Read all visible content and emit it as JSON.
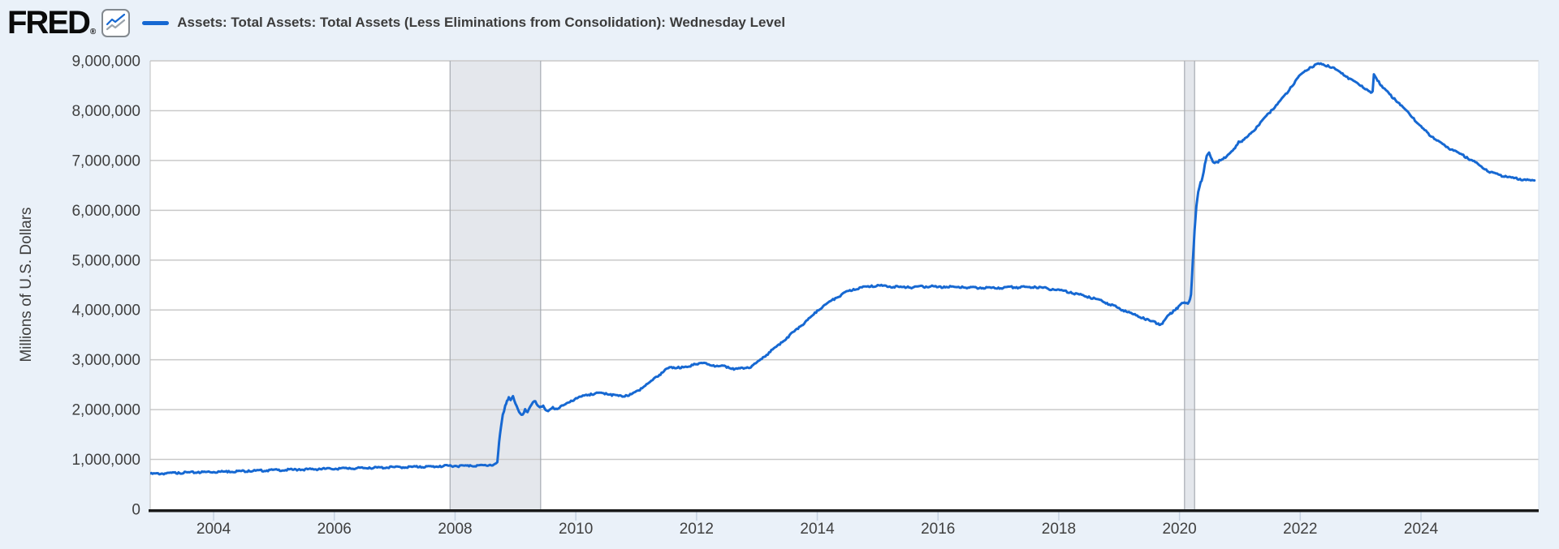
{
  "header": {
    "logo_text": "FRED",
    "logo_registered_mark": "®",
    "legend_series_label": "Assets: Total Assets: Total Assets (Less Eliminations from Consolidation): Wednesday Level"
  },
  "colors": {
    "page_background": "#eaf1f9",
    "plot_background": "#ffffff",
    "series_line": "#1668d2",
    "logo_icon_secondary_line": "#9aa3ab",
    "gridline": "#c9c9c9",
    "plot_left_border": "#bfbfbf",
    "plot_right_border": "#d7e0ec",
    "recession_band_fill": "#e4e7ec",
    "recession_band_border": "#a6abb2",
    "axis_line": "#1a1a1a",
    "tick_label": "#404040",
    "tick_mark": "#c5d2e2",
    "title_text": "#3c3c3c"
  },
  "chart_data": {
    "type": "line",
    "title": "Assets: Total Assets: Total Assets (Less Eliminations from Consolidation): Wednesday Level",
    "xlabel": "",
    "ylabel": "Millions of U.S. Dollars",
    "legend_position": "top-left",
    "grid": "horizontal",
    "xlim": [
      2002.95,
      2025.95
    ],
    "ylim": [
      0,
      9000000
    ],
    "x_tick_labels": [
      "2004",
      "2006",
      "2008",
      "2010",
      "2012",
      "2014",
      "2016",
      "2018",
      "2020",
      "2022",
      "2024"
    ],
    "y_tick_labels": [
      "0",
      "1,000,000",
      "2,000,000",
      "3,000,000",
      "4,000,000",
      "5,000,000",
      "6,000,000",
      "7,000,000",
      "8,000,000",
      "9,000,000"
    ],
    "recession_bands": [
      [
        2007.917,
        2009.417
      ],
      [
        2020.083,
        2020.25
      ]
    ],
    "series": [
      {
        "name": "Assets: Total Assets: Total Assets (Less Eliminations from Consolidation): Wednesday Level",
        "units": "Millions of U.S. Dollars",
        "points": [
          [
            2002.95,
            719000
          ],
          [
            2003.08,
            723000
          ],
          [
            2003.25,
            733000
          ],
          [
            2003.42,
            741000
          ],
          [
            2003.58,
            746000
          ],
          [
            2003.75,
            750000
          ],
          [
            2003.92,
            758000
          ],
          [
            2004.08,
            761000
          ],
          [
            2004.25,
            768000
          ],
          [
            2004.42,
            774000
          ],
          [
            2004.58,
            779000
          ],
          [
            2004.75,
            784000
          ],
          [
            2004.92,
            792000
          ],
          [
            2005.08,
            796000
          ],
          [
            2005.25,
            801000
          ],
          [
            2005.42,
            806000
          ],
          [
            2005.58,
            811000
          ],
          [
            2005.75,
            816000
          ],
          [
            2005.92,
            825000
          ],
          [
            2006.08,
            826000
          ],
          [
            2006.25,
            830000
          ],
          [
            2006.42,
            834000
          ],
          [
            2006.58,
            839000
          ],
          [
            2006.75,
            843000
          ],
          [
            2006.92,
            852000
          ],
          [
            2007.08,
            853000
          ],
          [
            2007.25,
            857000
          ],
          [
            2007.42,
            861000
          ],
          [
            2007.58,
            865000
          ],
          [
            2007.75,
            870000
          ],
          [
            2007.92,
            884000
          ],
          [
            2008.08,
            879000
          ],
          [
            2008.25,
            883000
          ],
          [
            2008.42,
            889000
          ],
          [
            2008.58,
            894000
          ],
          [
            2008.66,
            910000
          ],
          [
            2008.7,
            945000
          ],
          [
            2008.73,
            1350000
          ],
          [
            2008.76,
            1650000
          ],
          [
            2008.79,
            1900000
          ],
          [
            2008.83,
            2080000
          ],
          [
            2008.86,
            2180000
          ],
          [
            2008.89,
            2250000
          ],
          [
            2008.92,
            2190000
          ],
          [
            2008.96,
            2270000
          ],
          [
            2009.0,
            2120000
          ],
          [
            2009.04,
            2010000
          ],
          [
            2009.08,
            1920000
          ],
          [
            2009.12,
            1900000
          ],
          [
            2009.16,
            2010000
          ],
          [
            2009.2,
            1950000
          ],
          [
            2009.25,
            2070000
          ],
          [
            2009.29,
            2150000
          ],
          [
            2009.33,
            2170000
          ],
          [
            2009.37,
            2080000
          ],
          [
            2009.42,
            2060000
          ],
          [
            2009.46,
            2080000
          ],
          [
            2009.5,
            1990000
          ],
          [
            2009.54,
            1970000
          ],
          [
            2009.58,
            2010000
          ],
          [
            2009.62,
            2050000
          ],
          [
            2009.67,
            2020000
          ],
          [
            2009.75,
            2070000
          ],
          [
            2009.83,
            2110000
          ],
          [
            2009.92,
            2180000
          ],
          [
            2010.0,
            2230000
          ],
          [
            2010.08,
            2260000
          ],
          [
            2010.17,
            2300000
          ],
          [
            2010.25,
            2320000
          ],
          [
            2010.33,
            2330000
          ],
          [
            2010.42,
            2340000
          ],
          [
            2010.5,
            2330000
          ],
          [
            2010.58,
            2310000
          ],
          [
            2010.67,
            2290000
          ],
          [
            2010.75,
            2280000
          ],
          [
            2010.83,
            2290000
          ],
          [
            2010.92,
            2310000
          ],
          [
            2011.0,
            2370000
          ],
          [
            2011.08,
            2430000
          ],
          [
            2011.17,
            2510000
          ],
          [
            2011.25,
            2580000
          ],
          [
            2011.33,
            2660000
          ],
          [
            2011.42,
            2740000
          ],
          [
            2011.5,
            2820000
          ],
          [
            2011.55,
            2850000
          ],
          [
            2011.62,
            2850000
          ],
          [
            2011.7,
            2860000
          ],
          [
            2011.78,
            2850000
          ],
          [
            2011.86,
            2860000
          ],
          [
            2011.92,
            2900000
          ],
          [
            2011.96,
            2920000
          ],
          [
            2012.04,
            2930000
          ],
          [
            2012.12,
            2940000
          ],
          [
            2012.2,
            2910000
          ],
          [
            2012.28,
            2890000
          ],
          [
            2012.36,
            2870000
          ],
          [
            2012.44,
            2880000
          ],
          [
            2012.52,
            2860000
          ],
          [
            2012.6,
            2830000
          ],
          [
            2012.68,
            2820000
          ],
          [
            2012.76,
            2840000
          ],
          [
            2012.84,
            2850000
          ],
          [
            2012.92,
            2880000
          ],
          [
            2013.0,
            2950000
          ],
          [
            2013.1,
            3050000
          ],
          [
            2013.2,
            3150000
          ],
          [
            2013.3,
            3250000
          ],
          [
            2013.4,
            3350000
          ],
          [
            2013.5,
            3450000
          ],
          [
            2013.6,
            3560000
          ],
          [
            2013.7,
            3660000
          ],
          [
            2013.8,
            3760000
          ],
          [
            2013.9,
            3870000
          ],
          [
            2014.0,
            3990000
          ],
          [
            2014.1,
            4080000
          ],
          [
            2014.2,
            4170000
          ],
          [
            2014.3,
            4240000
          ],
          [
            2014.4,
            4310000
          ],
          [
            2014.5,
            4380000
          ],
          [
            2014.6,
            4420000
          ],
          [
            2014.7,
            4450000
          ],
          [
            2014.8,
            4470000
          ],
          [
            2014.9,
            4490000
          ],
          [
            2015.0,
            4500000
          ],
          [
            2015.1,
            4490000
          ],
          [
            2015.2,
            4470000
          ],
          [
            2015.3,
            4480000
          ],
          [
            2015.4,
            4460000
          ],
          [
            2015.5,
            4470000
          ],
          [
            2015.6,
            4460000
          ],
          [
            2015.7,
            4480000
          ],
          [
            2015.8,
            4470000
          ],
          [
            2015.9,
            4490000
          ],
          [
            2016.0,
            4460000
          ],
          [
            2016.1,
            4470000
          ],
          [
            2016.2,
            4480000
          ],
          [
            2016.3,
            4460000
          ],
          [
            2016.4,
            4470000
          ],
          [
            2016.5,
            4450000
          ],
          [
            2016.6,
            4460000
          ],
          [
            2016.7,
            4450000
          ],
          [
            2016.8,
            4460000
          ],
          [
            2016.9,
            4450000
          ],
          [
            2017.0,
            4450000
          ],
          [
            2017.1,
            4460000
          ],
          [
            2017.2,
            4470000
          ],
          [
            2017.3,
            4460000
          ],
          [
            2017.4,
            4470000
          ],
          [
            2017.5,
            4460000
          ],
          [
            2017.6,
            4470000
          ],
          [
            2017.7,
            4460000
          ],
          [
            2017.8,
            4440000
          ],
          [
            2017.9,
            4420000
          ],
          [
            2018.0,
            4410000
          ],
          [
            2018.1,
            4390000
          ],
          [
            2018.2,
            4360000
          ],
          [
            2018.3,
            4330000
          ],
          [
            2018.4,
            4300000
          ],
          [
            2018.5,
            4270000
          ],
          [
            2018.6,
            4230000
          ],
          [
            2018.7,
            4200000
          ],
          [
            2018.8,
            4140000
          ],
          [
            2018.9,
            4100000
          ],
          [
            2019.0,
            4040000
          ],
          [
            2019.1,
            3990000
          ],
          [
            2019.2,
            3940000
          ],
          [
            2019.3,
            3890000
          ],
          [
            2019.4,
            3850000
          ],
          [
            2019.5,
            3790000
          ],
          [
            2019.6,
            3760000
          ],
          [
            2019.65,
            3730000
          ],
          [
            2019.7,
            3720000
          ],
          [
            2019.75,
            3790000
          ],
          [
            2019.8,
            3880000
          ],
          [
            2019.85,
            3940000
          ],
          [
            2019.9,
            3990000
          ],
          [
            2019.95,
            4040000
          ],
          [
            2020.0,
            4090000
          ],
          [
            2020.04,
            4140000
          ],
          [
            2020.08,
            4150000
          ],
          [
            2020.12,
            4140000
          ],
          [
            2020.16,
            4170000
          ],
          [
            2020.19,
            4310000
          ],
          [
            2020.22,
            4980000
          ],
          [
            2020.25,
            5600000
          ],
          [
            2020.28,
            6080000
          ],
          [
            2020.31,
            6370000
          ],
          [
            2020.35,
            6570000
          ],
          [
            2020.38,
            6660000
          ],
          [
            2020.42,
            6930000
          ],
          [
            2020.45,
            7090000
          ],
          [
            2020.47,
            7130000
          ],
          [
            2020.49,
            7160000
          ],
          [
            2020.52,
            7060000
          ],
          [
            2020.55,
            6980000
          ],
          [
            2020.58,
            6950000
          ],
          [
            2020.62,
            6970000
          ],
          [
            2020.66,
            7010000
          ],
          [
            2020.7,
            7020000
          ],
          [
            2020.74,
            7060000
          ],
          [
            2020.78,
            7080000
          ],
          [
            2020.82,
            7130000
          ],
          [
            2020.86,
            7180000
          ],
          [
            2020.9,
            7230000
          ],
          [
            2020.94,
            7300000
          ],
          [
            2020.98,
            7380000
          ],
          [
            2021.05,
            7410000
          ],
          [
            2021.12,
            7470000
          ],
          [
            2021.2,
            7570000
          ],
          [
            2021.28,
            7680000
          ],
          [
            2021.36,
            7790000
          ],
          [
            2021.44,
            7900000
          ],
          [
            2021.52,
            8010000
          ],
          [
            2021.6,
            8110000
          ],
          [
            2021.68,
            8220000
          ],
          [
            2021.76,
            8340000
          ],
          [
            2021.84,
            8470000
          ],
          [
            2021.92,
            8600000
          ],
          [
            2022.0,
            8720000
          ],
          [
            2022.08,
            8800000
          ],
          [
            2022.16,
            8870000
          ],
          [
            2022.24,
            8920000
          ],
          [
            2022.3,
            8950000
          ],
          [
            2022.38,
            8930000
          ],
          [
            2022.46,
            8910000
          ],
          [
            2022.54,
            8870000
          ],
          [
            2022.62,
            8810000
          ],
          [
            2022.7,
            8750000
          ],
          [
            2022.78,
            8680000
          ],
          [
            2022.86,
            8620000
          ],
          [
            2022.94,
            8560000
          ],
          [
            2023.02,
            8500000
          ],
          [
            2023.1,
            8430000
          ],
          [
            2023.17,
            8360000
          ],
          [
            2023.2,
            8390000
          ],
          [
            2023.22,
            8730000
          ],
          [
            2023.26,
            8650000
          ],
          [
            2023.3,
            8590000
          ],
          [
            2023.35,
            8500000
          ],
          [
            2023.4,
            8440000
          ],
          [
            2023.48,
            8330000
          ],
          [
            2023.56,
            8250000
          ],
          [
            2023.64,
            8150000
          ],
          [
            2023.72,
            8050000
          ],
          [
            2023.8,
            7950000
          ],
          [
            2023.88,
            7850000
          ],
          [
            2023.96,
            7730000
          ],
          [
            2024.04,
            7640000
          ],
          [
            2024.12,
            7550000
          ],
          [
            2024.2,
            7470000
          ],
          [
            2024.28,
            7400000
          ],
          [
            2024.36,
            7330000
          ],
          [
            2024.44,
            7270000
          ],
          [
            2024.52,
            7220000
          ],
          [
            2024.6,
            7170000
          ],
          [
            2024.68,
            7120000
          ],
          [
            2024.76,
            7070000
          ],
          [
            2024.84,
            7010000
          ],
          [
            2024.92,
            6960000
          ],
          [
            2025.0,
            6880000
          ],
          [
            2025.08,
            6820000
          ],
          [
            2025.16,
            6770000
          ],
          [
            2025.24,
            6740000
          ],
          [
            2025.32,
            6710000
          ],
          [
            2025.4,
            6690000
          ],
          [
            2025.48,
            6670000
          ],
          [
            2025.56,
            6650000
          ],
          [
            2025.64,
            6630000
          ],
          [
            2025.72,
            6620000
          ],
          [
            2025.8,
            6610000
          ],
          [
            2025.88,
            6600000
          ]
        ]
      }
    ]
  }
}
